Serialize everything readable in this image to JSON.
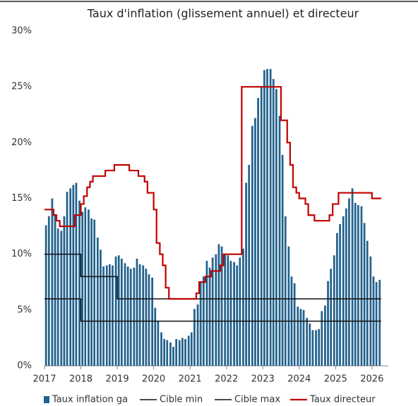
{
  "chart_data": {
    "type": "bar_line",
    "title": "Taux d'inflation (glissement annuel) et directeur",
    "x": [
      2017,
      2017.08,
      2017.17,
      2017.25,
      2017.33,
      2017.42,
      2017.5,
      2017.58,
      2017.67,
      2017.75,
      2017.83,
      2017.92,
      2018,
      2018.08,
      2018.17,
      2018.25,
      2018.33,
      2018.42,
      2018.5,
      2018.58,
      2018.67,
      2018.75,
      2018.83,
      2018.92,
      2019,
      2019.08,
      2019.17,
      2019.25,
      2019.33,
      2019.42,
      2019.5,
      2019.58,
      2019.67,
      2019.75,
      2019.83,
      2019.92,
      2020,
      2020.08,
      2020.17,
      2020.25,
      2020.33,
      2020.42,
      2020.5,
      2020.58,
      2020.67,
      2020.75,
      2020.83,
      2020.92,
      2021,
      2021.08,
      2021.17,
      2021.25,
      2021.33,
      2021.42,
      2021.5,
      2021.58,
      2021.67,
      2021.75,
      2021.83,
      2021.92,
      2022,
      2022.08,
      2022.17,
      2022.25,
      2022.33,
      2022.42,
      2022.5,
      2022.58,
      2022.67,
      2022.75,
      2022.83,
      2022.92,
      2023,
      2023.08,
      2023.17,
      2023.25,
      2023.33,
      2023.42,
      2023.5,
      2023.58,
      2023.67,
      2023.75,
      2023.83,
      2023.92,
      2024,
      2024.08,
      2024.17,
      2024.25,
      2024.33,
      2024.42,
      2024.5,
      2024.58,
      2024.67,
      2024.75,
      2024.83,
      2024.92,
      2025,
      2025.08,
      2025.17,
      2025.25,
      2025.33,
      2025.42,
      2025.5,
      2025.58,
      2025.67,
      2025.75,
      2025.83,
      2025.92,
      2026,
      2026.08,
      2026.17
    ],
    "series": [
      {
        "name": "Taux inflation ga",
        "kind": "bar",
        "color": "#22628d",
        "values": [
          12.6,
          13.4,
          15.0,
          13.6,
          12.3,
          12.1,
          13.4,
          15.6,
          15.9,
          16.2,
          16.4,
          14.8,
          13.8,
          14.2,
          14.0,
          13.2,
          13.1,
          11.5,
          10.4,
          8.9,
          9.0,
          9.1,
          9.0,
          9.8,
          9.9,
          9.6,
          9.2,
          8.9,
          8.7,
          8.8,
          9.6,
          9.1,
          9.0,
          8.7,
          8.2,
          7.9,
          5.2,
          4.0,
          3.0,
          2.4,
          2.3,
          2.1,
          1.7,
          2.4,
          2.3,
          2.5,
          2.4,
          2.7,
          3.0,
          5.1,
          5.5,
          7.5,
          8.0,
          9.4,
          8.8,
          9.7,
          10.0,
          10.9,
          10.7,
          10.0,
          9.9,
          9.4,
          9.3,
          9.0,
          9.7,
          10.5,
          16.4,
          18.0,
          21.5,
          22.2,
          24.0,
          25.0,
          26.5,
          26.6,
          26.6,
          25.7,
          24.8,
          22.4,
          18.9,
          13.4,
          10.7,
          8.0,
          7.4,
          5.3,
          5.1,
          5.0,
          4.3,
          3.8,
          3.2,
          3.2,
          3.3,
          4.9,
          5.4,
          7.6,
          8.7,
          9.9,
          11.9,
          12.7,
          13.4,
          14.1,
          15.0,
          15.9,
          14.6,
          14.4,
          14.3,
          12.8,
          11.2,
          9.8,
          8.0,
          7.5,
          7.7
        ]
      },
      {
        "name": "Cible min",
        "kind": "step",
        "color": "#111111",
        "values": [
          6,
          6,
          6,
          6,
          6,
          6,
          6,
          6,
          6,
          6,
          6,
          6,
          4,
          4,
          4,
          4,
          4,
          4,
          4,
          4,
          4,
          4,
          4,
          4,
          4,
          4,
          4,
          4,
          4,
          4,
          4,
          4,
          4,
          4,
          4,
          4,
          4,
          4,
          4,
          4,
          4,
          4,
          4,
          4,
          4,
          4,
          4,
          4,
          4,
          4,
          4,
          4,
          4,
          4,
          4,
          4,
          4,
          4,
          4,
          4,
          4,
          4,
          4,
          4,
          4,
          4,
          4,
          4,
          4,
          4,
          4,
          4,
          4,
          4,
          4,
          4,
          4,
          4,
          4,
          4,
          4,
          4,
          4,
          4,
          4,
          4,
          4,
          4,
          4,
          4,
          4,
          4,
          4,
          4,
          4,
          4,
          4,
          4,
          4,
          4,
          4,
          4,
          4,
          4,
          4,
          4,
          4,
          4,
          4,
          4,
          4
        ]
      },
      {
        "name": "Cible max",
        "kind": "step",
        "color": "#111111",
        "values": [
          10,
          10,
          10,
          10,
          10,
          10,
          10,
          10,
          10,
          10,
          10,
          10,
          8,
          8,
          8,
          8,
          8,
          8,
          8,
          8,
          8,
          8,
          8,
          8,
          6,
          6,
          6,
          6,
          6,
          6,
          6,
          6,
          6,
          6,
          6,
          6,
          6,
          6,
          6,
          6,
          6,
          6,
          6,
          6,
          6,
          6,
          6,
          6,
          6,
          6,
          6,
          6,
          6,
          6,
          6,
          6,
          6,
          6,
          6,
          6,
          6,
          6,
          6,
          6,
          6,
          6,
          6,
          6,
          6,
          6,
          6,
          6,
          6,
          6,
          6,
          6,
          6,
          6,
          6,
          6,
          6,
          6,
          6,
          6,
          6,
          6,
          6,
          6,
          6,
          6,
          6,
          6,
          6,
          6,
          6,
          6,
          6,
          6,
          6,
          6,
          6,
          6,
          6,
          6,
          6,
          6,
          6,
          6,
          6,
          6,
          6
        ]
      },
      {
        "name": "Taux directeur",
        "kind": "step",
        "color": "#c00000",
        "values": [
          14,
          14,
          14,
          13.5,
          13,
          12.5,
          12.5,
          12.5,
          12.5,
          12.5,
          13.5,
          13.5,
          14.5,
          15.2,
          16,
          16.5,
          17,
          17,
          17,
          17,
          17.5,
          17.5,
          17.5,
          18,
          18,
          18,
          18,
          18,
          17.5,
          17.5,
          17.5,
          17,
          17,
          16.5,
          15.5,
          15.5,
          14,
          11,
          10,
          9,
          7,
          6,
          6,
          6,
          6,
          6,
          6,
          6,
          6,
          6,
          6.5,
          7.5,
          7.5,
          8,
          8,
          8.5,
          8.5,
          8.5,
          9,
          10,
          10,
          10,
          10,
          10,
          10,
          25,
          25,
          25,
          25,
          25,
          25,
          25,
          25,
          25,
          25,
          25,
          25,
          25,
          22,
          22,
          20,
          18,
          16,
          15.5,
          15,
          15,
          14.5,
          13.5,
          13.5,
          13,
          13,
          13,
          13,
          13,
          13.5,
          14.5,
          14.5,
          15.5,
          15.5,
          15.5,
          15.5,
          15.5,
          15.5,
          15.5,
          15.5,
          15.5,
          15.5,
          15.5,
          15,
          15,
          15
        ]
      }
    ],
    "xlim": [
      2017,
      2026.45
    ],
    "xticks": [
      2017,
      2018,
      2019,
      2020,
      2021,
      2022,
      2023,
      2024,
      2025,
      2026
    ],
    "ylim": [
      0,
      30
    ],
    "yticks": [
      {
        "value": 0,
        "label": "0%"
      },
      {
        "value": 5,
        "label": "5%"
      },
      {
        "value": 10,
        "label": "10%"
      },
      {
        "value": 15,
        "label": "15%"
      },
      {
        "value": 20,
        "label": "20%"
      },
      {
        "value": 25,
        "label": "25%"
      },
      {
        "value": 30,
        "label": "30%"
      }
    ],
    "legend": "bottom"
  }
}
